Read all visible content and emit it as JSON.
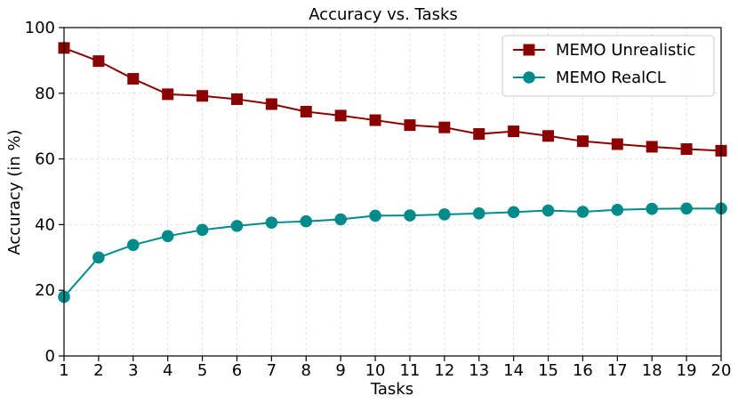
{
  "chart_data": {
    "type": "line",
    "title": "Accuracy vs. Tasks",
    "xlabel": "Tasks",
    "ylabel": "Accuracy (in %)",
    "x": [
      1,
      2,
      3,
      4,
      5,
      6,
      7,
      8,
      9,
      10,
      11,
      12,
      13,
      14,
      15,
      16,
      17,
      18,
      19,
      20
    ],
    "xlim": [
      1,
      20
    ],
    "ylim": [
      0,
      100
    ],
    "yticks": [
      0,
      20,
      40,
      60,
      80,
      100
    ],
    "grid": true,
    "legend_position": "top-right",
    "series": [
      {
        "name": "MEMO Unrealistic",
        "color": "#8b0000",
        "marker": "square",
        "values": [
          93.8,
          89.8,
          84.4,
          79.7,
          79.2,
          78.2,
          76.7,
          74.4,
          73.2,
          71.8,
          70.3,
          69.6,
          67.6,
          68.4,
          67.0,
          65.4,
          64.5,
          63.7,
          63.0,
          62.5
        ]
      },
      {
        "name": "MEMO RealCL",
        "color": "#008b8b",
        "marker": "circle",
        "values": [
          18.0,
          30.0,
          33.8,
          36.5,
          38.4,
          39.6,
          40.6,
          41.0,
          41.6,
          42.7,
          42.8,
          43.1,
          43.4,
          43.8,
          44.3,
          43.9,
          44.5,
          44.8,
          44.9,
          44.9
        ]
      }
    ]
  }
}
